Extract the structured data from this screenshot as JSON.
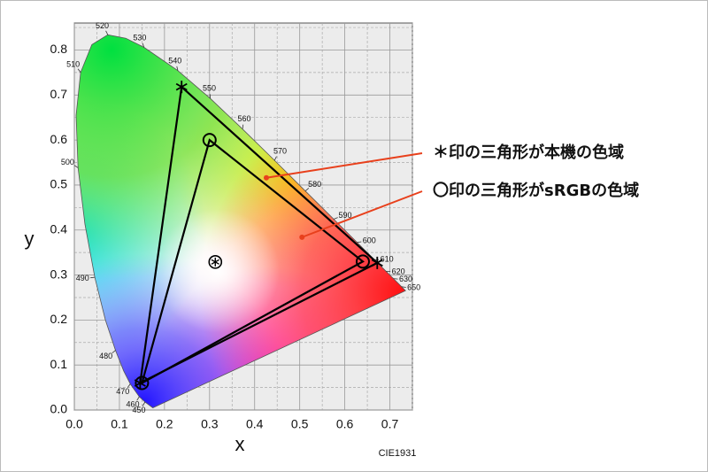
{
  "chart_data": {
    "type": "chromaticity",
    "xlabel": "x",
    "ylabel": "y",
    "caption": "CIE1931",
    "xlim": [
      0,
      0.75
    ],
    "ylim": [
      0,
      0.86
    ],
    "xticks": [
      {
        "value": 0,
        "label": "0.0"
      },
      0.1,
      0.2,
      0.3,
      0.4,
      0.5,
      0.6,
      0.7
    ],
    "yticks": [
      {
        "value": 0,
        "label": "0.0"
      },
      0.1,
      0.2,
      0.3,
      0.4,
      0.5,
      0.6,
      0.7,
      0.8
    ],
    "grid": true,
    "minor_grid": true,
    "locus": {
      "x": [
        0.1741,
        0.1566,
        0.144,
        0.1241,
        0.1096,
        0.0913,
        0.0687,
        0.0454,
        0.0235,
        0.0082,
        0.0039,
        0.0139,
        0.0389,
        0.0743,
        0.1142,
        0.1547,
        0.2296,
        0.3016,
        0.3731,
        0.4441,
        0.5125,
        0.5752,
        0.627,
        0.6658,
        0.6915,
        0.7079,
        0.726,
        0.7347
      ],
      "y": [
        0.005,
        0.0177,
        0.0297,
        0.0578,
        0.0868,
        0.1327,
        0.2007,
        0.295,
        0.4127,
        0.5384,
        0.6548,
        0.7502,
        0.812,
        0.8338,
        0.8262,
        0.8059,
        0.7543,
        0.6923,
        0.6245,
        0.5547,
        0.4866,
        0.4242,
        0.3725,
        0.334,
        0.3083,
        0.292,
        0.274,
        0.2653
      ],
      "labels": [
        null,
        450,
        460,
        470,
        null,
        480,
        null,
        490,
        null,
        500,
        null,
        510,
        null,
        520,
        null,
        530,
        540,
        550,
        560,
        570,
        580,
        590,
        600,
        610,
        620,
        630,
        650,
        null
      ]
    },
    "gamuts": [
      {
        "x": [
          0.238,
          0.672,
          0.146
        ],
        "y": [
          0.718,
          0.327,
          0.06
        ],
        "marker": "star"
      },
      {
        "x": [
          0.3,
          0.64,
          0.15
        ],
        "y": [
          0.6,
          0.33,
          0.06
        ],
        "marker": "circle"
      }
    ],
    "white_point": {
      "x": 0.3127,
      "y": 0.329
    },
    "annotations": [
      {
        "text": "＊印の三角形が本機の色域",
        "x": 0.426,
        "y": 0.516
      },
      {
        "text": "〇印の三角形がsRGBの色域",
        "x": 0.505,
        "y": 0.384
      }
    ]
  }
}
